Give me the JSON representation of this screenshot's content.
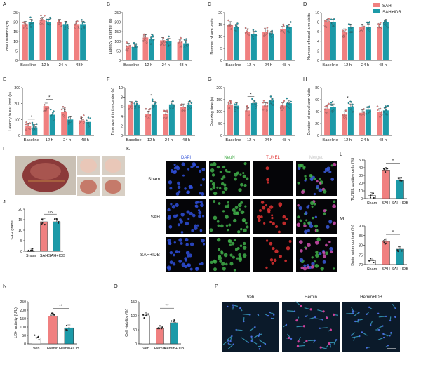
{
  "legend": {
    "items": [
      {
        "label": "SAH",
        "color": "#f08080"
      },
      {
        "label": "SAH+IDB",
        "color": "#1c9aa8"
      }
    ]
  },
  "panels": {
    "letters": [
      "A",
      "B",
      "C",
      "D",
      "E",
      "F",
      "G",
      "H",
      "I",
      "J",
      "K",
      "L",
      "M",
      "N",
      "O",
      "P"
    ]
  },
  "microscopy": {
    "channels": [
      "DAPI",
      "NeuN",
      "TUNEL",
      "Merged"
    ],
    "rows": [
      "Sham",
      "SAH",
      "SAH+IDB"
    ],
    "channel_colors": [
      "#3b5bdb",
      "#4caf50",
      "#e03131",
      "#cccccc"
    ],
    "p_labels": [
      "Veh",
      "Hemin",
      "Hemin+IDB"
    ]
  },
  "chart_data": [
    {
      "id": "A",
      "type": "bar",
      "ylabel": "Total Distance (m)",
      "ylim": [
        0,
        25
      ],
      "yticks": [
        0,
        5,
        10,
        15,
        20,
        25
      ],
      "categories": [
        "Baseline",
        "12 h",
        "24 h",
        "48 h"
      ],
      "series": [
        {
          "name": "SAH",
          "values": [
            19,
            21,
            20,
            19
          ]
        },
        {
          "name": "SAH+IDB",
          "values": [
            20,
            20,
            19,
            19
          ]
        }
      ],
      "sig": []
    },
    {
      "id": "B",
      "type": "bar",
      "ylabel": "Latency to center (s)",
      "ylim": [
        0,
        250
      ],
      "yticks": [
        0,
        50,
        100,
        150,
        200,
        250
      ],
      "categories": [
        "Baseline",
        "12 h",
        "24 h",
        "48 h"
      ],
      "series": [
        {
          "name": "SAH",
          "values": [
            75,
            120,
            105,
            95
          ]
        },
        {
          "name": "SAH+IDB",
          "values": [
            70,
            110,
            100,
            90
          ]
        }
      ],
      "sig": []
    },
    {
      "id": "C",
      "type": "bar",
      "ylabel": "Number of arm visits",
      "ylim": [
        0,
        20
      ],
      "yticks": [
        0,
        5,
        10,
        15,
        20
      ],
      "categories": [
        "Baseline",
        "12 h",
        "24 h",
        "48 h"
      ],
      "series": [
        {
          "name": "SAH",
          "values": [
            15,
            12,
            12,
            13
          ]
        },
        {
          "name": "SAH+IDB",
          "values": [
            14,
            11,
            11,
            14
          ]
        }
      ],
      "sig": []
    },
    {
      "id": "D",
      "type": "bar",
      "ylabel": "Number of novel arm visits",
      "ylim": [
        0,
        10
      ],
      "yticks": [
        0,
        2,
        4,
        6,
        8,
        10
      ],
      "categories": [
        "Baseline",
        "12 h",
        "24 h",
        "48 h"
      ],
      "series": [
        {
          "name": "SAH",
          "values": [
            8,
            6,
            7,
            7
          ]
        },
        {
          "name": "SAH+IDB",
          "values": [
            8,
            7,
            7,
            8
          ]
        }
      ],
      "sig": []
    },
    {
      "id": "E",
      "type": "bar",
      "ylabel": "Latency to eat food (s)",
      "ylim": [
        0,
        300
      ],
      "yticks": [
        0,
        100,
        200,
        300
      ],
      "categories": [
        "Baseline",
        "12 h",
        "24 h",
        "48 h"
      ],
      "series": [
        {
          "name": "SAH",
          "values": [
            60,
            185,
            150,
            95
          ]
        },
        {
          "name": "SAH+IDB",
          "values": [
            50,
            130,
            100,
            85
          ]
        }
      ],
      "sig": [
        "*",
        "*",
        "",
        ""
      ]
    },
    {
      "id": "F",
      "type": "bar",
      "ylabel": "Time spent in the center (s)",
      "ylim": [
        0,
        10
      ],
      "yticks": [
        0,
        2,
        4,
        6,
        8,
        10
      ],
      "categories": [
        "Baseline",
        "12 h",
        "24 h",
        "48 h"
      ],
      "series": [
        {
          "name": "SAH",
          "values": [
            6.5,
            4.5,
            4.5,
            6
          ]
        },
        {
          "name": "SAH+IDB",
          "values": [
            6.5,
            6.5,
            6.5,
            6.5
          ]
        }
      ],
      "sig": [
        "",
        "*",
        "",
        ""
      ]
    },
    {
      "id": "G",
      "type": "bar",
      "ylabel": "Freezing time (s)",
      "ylim": [
        0,
        200
      ],
      "yticks": [
        0,
        50,
        100,
        150,
        200
      ],
      "categories": [
        "Baseline",
        "12 h",
        "24 h",
        "48 h"
      ],
      "series": [
        {
          "name": "SAH",
          "values": [
            130,
            105,
            125,
            125
          ]
        },
        {
          "name": "SAH+IDB",
          "values": [
            125,
            135,
            145,
            135
          ]
        }
      ],
      "sig": [
        "",
        "*",
        "",
        ""
      ]
    },
    {
      "id": "H",
      "type": "bar",
      "ylabel": "Duration of novel arm visits",
      "ylim": [
        0,
        80
      ],
      "yticks": [
        0,
        20,
        40,
        60,
        80
      ],
      "categories": [
        "Baseline",
        "12 h",
        "24 h",
        "48 h"
      ],
      "series": [
        {
          "name": "SAH",
          "values": [
            45,
            35,
            38,
            40
          ]
        },
        {
          "name": "SAH+IDB",
          "values": [
            48,
            48,
            43,
            42
          ]
        }
      ],
      "sig": [
        "",
        "*",
        "",
        ""
      ]
    },
    {
      "id": "J",
      "type": "bar",
      "ylabel": "SAH grade",
      "ylim": [
        0,
        20
      ],
      "yticks": [
        0,
        5,
        10,
        15,
        20
      ],
      "categories": [
        "Sham",
        "SAH",
        "SAH+IDB"
      ],
      "values": [
        0,
        14,
        14
      ],
      "colors": [
        "#ffffff",
        "#f08080",
        "#1c9aa8"
      ],
      "sig_label": "ns"
    },
    {
      "id": "L",
      "type": "bar",
      "ylabel": "TUNEL positive cells (%)",
      "ylim": [
        0,
        50
      ],
      "yticks": [
        0,
        10,
        20,
        30,
        40,
        50
      ],
      "categories": [
        "Sham",
        "SAH",
        "SAH+IDB"
      ],
      "values": [
        4,
        37,
        24
      ],
      "colors": [
        "#ffffff",
        "#f08080",
        "#1c9aa8"
      ],
      "sig_label": "*"
    },
    {
      "id": "M",
      "type": "bar",
      "ylabel": "Brain water content (%)",
      "ylim": [
        70,
        90
      ],
      "yticks": [
        70,
        75,
        80,
        85,
        90
      ],
      "categories": [
        "Sham",
        "SAH",
        "SAH+IDB"
      ],
      "values": [
        72,
        82,
        78
      ],
      "colors": [
        "#ffffff",
        "#f08080",
        "#1c9aa8"
      ],
      "sig_label": "*"
    },
    {
      "id": "N",
      "type": "bar",
      "ylabel": "LDH activity (U/L)",
      "ylim": [
        0,
        250
      ],
      "yticks": [
        0,
        50,
        100,
        150,
        200,
        250
      ],
      "categories": [
        "Veh",
        "Hemin",
        "Hemin+IDB"
      ],
      "values": [
        35,
        165,
        95
      ],
      "colors": [
        "#ffffff",
        "#f08080",
        "#1c9aa8"
      ],
      "sig_label": "**"
    },
    {
      "id": "O",
      "type": "bar",
      "ylabel": "Cell viability (%)",
      "ylim": [
        0,
        150
      ],
      "yticks": [
        0,
        50,
        100,
        150
      ],
      "categories": [
        "Veh",
        "Hemin",
        "Hemin+IDB"
      ],
      "values": [
        100,
        55,
        75
      ],
      "colors": [
        "#ffffff",
        "#f08080",
        "#1c9aa8"
      ],
      "sig_label": "**"
    }
  ]
}
